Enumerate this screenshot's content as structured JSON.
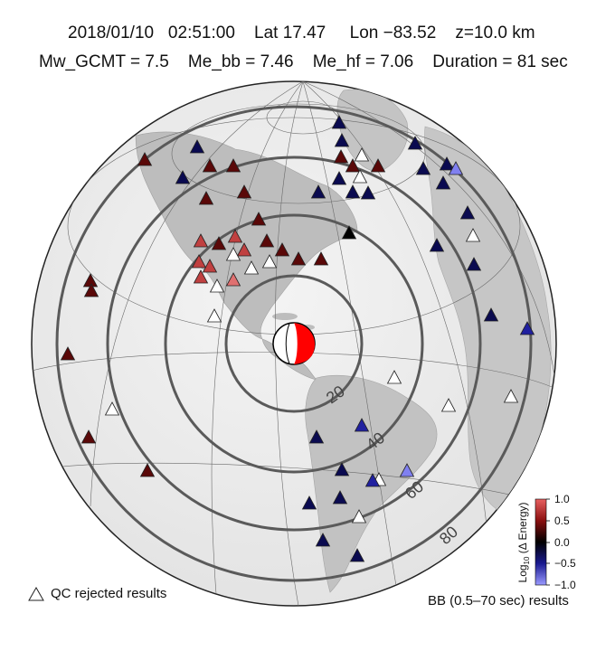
{
  "header": {
    "line1": "2018/01/10   02:51:00    Lat 17.47     Lon −83.52    z=10.0 km",
    "line2": "Mw_GCMT = 7.5    Me_bb = 7.46    Me_hf = 7.06    Duration = 81 sec"
  },
  "distance_rings": [
    {
      "label": "20"
    },
    {
      "label": "40"
    },
    {
      "label": "60"
    },
    {
      "label": "80"
    }
  ],
  "colorbar": {
    "label_main": "Log",
    "label_sub": "10",
    "label_rest": " (Δ Energy)",
    "ticks": [
      "1.0",
      "0.5",
      "0.0",
      "−0.5",
      "−1.0"
    ],
    "colors": [
      "#b22222",
      "#7a1010",
      "#000000",
      "#1a1a80",
      "#8a8aff"
    ]
  },
  "legend": {
    "qc_label": "QC rejected results",
    "bb_label": "BB (0.5–70 sec) results"
  },
  "stations_palette": {
    "dark_red": "#5a0808",
    "red": "#8b1a1a",
    "light_red": "#c04040",
    "pink": "#e07070",
    "black": "#000000",
    "navy": "#0a0a50",
    "blue": "#2020a0",
    "light_blue": "#8080f0"
  }
}
